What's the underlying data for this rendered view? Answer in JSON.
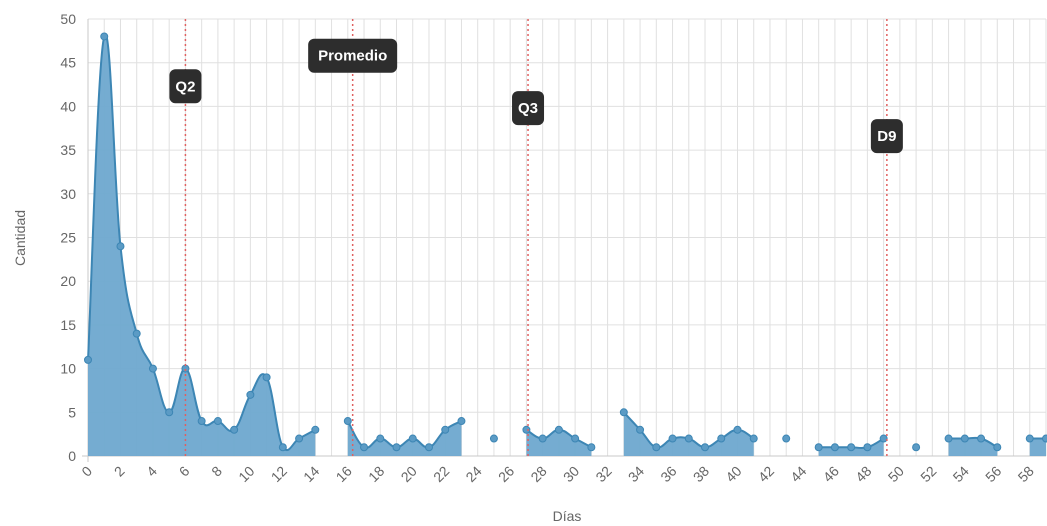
{
  "chart_data": {
    "type": "area",
    "title": "",
    "xlabel": "Días",
    "ylabel": "Cantidad",
    "xlim": [
      0,
      59
    ],
    "ylim": [
      0,
      50
    ],
    "y_ticks": [
      0,
      5,
      10,
      15,
      20,
      25,
      30,
      35,
      40,
      45,
      50
    ],
    "x_ticks": [
      0,
      2,
      4,
      6,
      8,
      10,
      12,
      14,
      16,
      18,
      20,
      22,
      24,
      26,
      28,
      30,
      32,
      34,
      36,
      38,
      40,
      42,
      44,
      46,
      48,
      50,
      52,
      54,
      56,
      58
    ],
    "grid": true,
    "legend": "none",
    "series": [
      {
        "x": [
          0,
          1,
          2,
          3,
          4,
          5,
          6,
          7,
          8,
          9,
          10,
          11,
          12,
          13,
          14,
          15,
          16,
          17,
          18,
          19,
          20,
          21,
          22,
          23,
          24,
          25,
          26,
          27,
          28,
          29,
          30,
          31,
          32,
          33,
          34,
          35,
          36,
          37,
          38,
          39,
          40,
          41,
          42,
          43,
          44,
          45,
          46,
          47,
          48,
          49,
          50,
          51,
          52,
          53,
          54,
          55,
          56,
          57,
          58,
          59
        ],
        "values": [
          11,
          48,
          24,
          14,
          10,
          5,
          10,
          4,
          4,
          3,
          7,
          9,
          1,
          2,
          3,
          null,
          4,
          1,
          2,
          1,
          2,
          1,
          3,
          4,
          null,
          2,
          null,
          3,
          2,
          3,
          2,
          1,
          null,
          5,
          3,
          1,
          2,
          2,
          1,
          2,
          3,
          2,
          null,
          2,
          null,
          1,
          1,
          1,
          1,
          2,
          null,
          1,
          null,
          2,
          2,
          2,
          1,
          null,
          2,
          2
        ]
      }
    ],
    "annotations": [
      {
        "label": "Q2",
        "x": 6,
        "label_y": 42.3
      },
      {
        "label": "Promedio",
        "x": 16.3,
        "label_y": 45.8
      },
      {
        "label": "Q3",
        "x": 27.1,
        "label_y": 39.8
      },
      {
        "label": "D9",
        "x": 49.2,
        "label_y": 36.6
      }
    ],
    "colors": {
      "line": "#3d86b4",
      "fill": "#6ea8cf",
      "point": "#5b9bc5",
      "grid": "#e0e0e0",
      "annotation_line": "#e06060",
      "annotation_box": "#2d2d2d"
    }
  }
}
